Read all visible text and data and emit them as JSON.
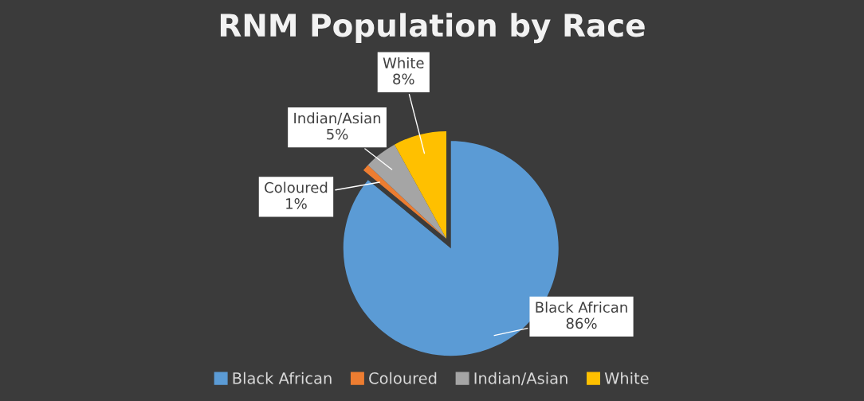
{
  "chart_data": {
    "type": "pie",
    "title": "RNM Population by Race",
    "categories": [
      "Black African",
      "Coloured",
      "Indian/Asian",
      "White"
    ],
    "values": [
      86,
      1,
      5,
      8
    ],
    "value_labels": [
      "86%",
      "1%",
      "5%",
      "8%"
    ],
    "colors": [
      "#5b9bd5",
      "#ed7d31",
      "#a5a5a5",
      "#ffc000"
    ],
    "legend": "bottom"
  }
}
